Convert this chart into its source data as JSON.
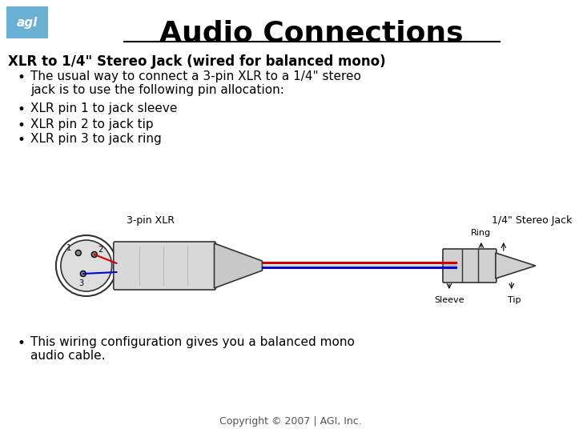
{
  "title": "Audio Connections",
  "subtitle": "XLR to 1/4\" Stereo Jack (wired for balanced mono)",
  "bullets": [
    "The usual way to connect a 3-pin XLR to a 1/4\" stereo\njack is to use the following pin allocation:",
    "XLR pin 1 to jack sleeve",
    "XLR pin 2 to jack tip",
    "XLR pin 3 to jack ring"
  ],
  "footer_bullet": "This wiring configuration gives you a balanced mono\naudio cable.",
  "copyright": "Copyright © 2007 | AGI, Inc.",
  "bg_color": "#ffffff",
  "logo_bg": "#6ab0d4",
  "logo_text": "agl",
  "xlr_label": "3-pin XLR",
  "jack_label": "1/4\" Stereo Jack",
  "ring_label": "Ring",
  "sleeve_label": "Sleeve",
  "tip_label": "Tip",
  "pin_labels": [
    "1",
    "2",
    "3"
  ],
  "wire_colors": [
    "#cc0000",
    "#0000cc"
  ],
  "connector_color": "#cccccc",
  "outline_color": "#333333"
}
